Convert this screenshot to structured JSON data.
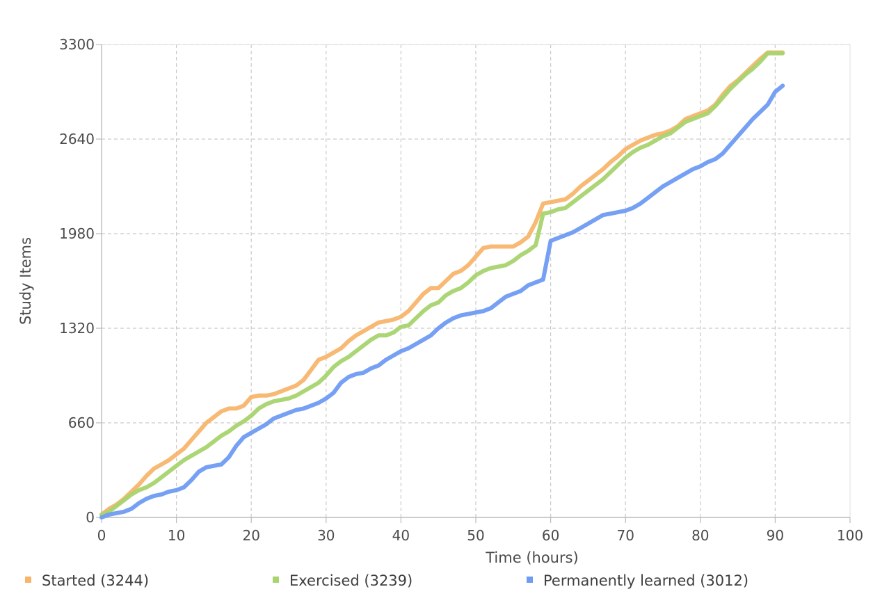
{
  "chart_data": {
    "type": "line",
    "title": "",
    "xlabel": "Time (hours)",
    "ylabel": "Study Items",
    "xlim": [
      0,
      100
    ],
    "ylim": [
      0,
      3300
    ],
    "xticks": [
      0,
      10,
      20,
      30,
      40,
      50,
      60,
      70,
      80,
      90,
      100
    ],
    "yticks": [
      0,
      660,
      1320,
      1980,
      2640,
      3300
    ],
    "grid": true,
    "legend_position": "bottom",
    "series": [
      {
        "name": "Started (3244)",
        "color": "#f7b56b",
        "points": [
          [
            0,
            20
          ],
          [
            1,
            60
          ],
          [
            2,
            90
          ],
          [
            3,
            130
          ],
          [
            4,
            180
          ],
          [
            5,
            230
          ],
          [
            6,
            290
          ],
          [
            7,
            340
          ],
          [
            8,
            370
          ],
          [
            9,
            400
          ],
          [
            10,
            440
          ],
          [
            11,
            480
          ],
          [
            12,
            540
          ],
          [
            13,
            600
          ],
          [
            14,
            660
          ],
          [
            15,
            700
          ],
          [
            16,
            740
          ],
          [
            17,
            760
          ],
          [
            18,
            760
          ],
          [
            19,
            780
          ],
          [
            20,
            840
          ],
          [
            21,
            850
          ],
          [
            22,
            850
          ],
          [
            23,
            860
          ],
          [
            24,
            880
          ],
          [
            25,
            900
          ],
          [
            26,
            920
          ],
          [
            27,
            960
          ],
          [
            28,
            1030
          ],
          [
            29,
            1100
          ],
          [
            30,
            1120
          ],
          [
            31,
            1150
          ],
          [
            32,
            1180
          ],
          [
            33,
            1230
          ],
          [
            34,
            1270
          ],
          [
            35,
            1300
          ],
          [
            36,
            1330
          ],
          [
            37,
            1360
          ],
          [
            38,
            1370
          ],
          [
            39,
            1380
          ],
          [
            40,
            1400
          ],
          [
            41,
            1440
          ],
          [
            42,
            1500
          ],
          [
            43,
            1560
          ],
          [
            44,
            1600
          ],
          [
            45,
            1600
          ],
          [
            46,
            1650
          ],
          [
            47,
            1700
          ],
          [
            48,
            1720
          ],
          [
            49,
            1760
          ],
          [
            50,
            1820
          ],
          [
            51,
            1880
          ],
          [
            52,
            1890
          ],
          [
            53,
            1890
          ],
          [
            54,
            1890
          ],
          [
            55,
            1890
          ],
          [
            56,
            1920
          ],
          [
            57,
            1960
          ],
          [
            58,
            2060
          ],
          [
            59,
            2190
          ],
          [
            60,
            2200
          ],
          [
            61,
            2210
          ],
          [
            62,
            2220
          ],
          [
            63,
            2260
          ],
          [
            64,
            2310
          ],
          [
            65,
            2350
          ],
          [
            66,
            2390
          ],
          [
            67,
            2430
          ],
          [
            68,
            2480
          ],
          [
            69,
            2520
          ],
          [
            70,
            2570
          ],
          [
            71,
            2600
          ],
          [
            72,
            2630
          ],
          [
            73,
            2650
          ],
          [
            74,
            2670
          ],
          [
            75,
            2680
          ],
          [
            76,
            2700
          ],
          [
            77,
            2730
          ],
          [
            78,
            2780
          ],
          [
            79,
            2800
          ],
          [
            80,
            2820
          ],
          [
            81,
            2840
          ],
          [
            82,
            2880
          ],
          [
            83,
            2950
          ],
          [
            84,
            3010
          ],
          [
            85,
            3050
          ],
          [
            86,
            3100
          ],
          [
            87,
            3150
          ],
          [
            88,
            3200
          ],
          [
            89,
            3244
          ],
          [
            90,
            3244
          ],
          [
            91,
            3244
          ]
        ]
      },
      {
        "name": "Exercised (3239)",
        "color": "#a8d46f",
        "points": [
          [
            0,
            20
          ],
          [
            1,
            40
          ],
          [
            2,
            80
          ],
          [
            3,
            120
          ],
          [
            4,
            160
          ],
          [
            5,
            190
          ],
          [
            6,
            210
          ],
          [
            7,
            240
          ],
          [
            8,
            280
          ],
          [
            9,
            320
          ],
          [
            10,
            360
          ],
          [
            11,
            400
          ],
          [
            12,
            430
          ],
          [
            13,
            460
          ],
          [
            14,
            490
          ],
          [
            15,
            530
          ],
          [
            16,
            570
          ],
          [
            17,
            600
          ],
          [
            18,
            640
          ],
          [
            19,
            670
          ],
          [
            20,
            710
          ],
          [
            21,
            760
          ],
          [
            22,
            790
          ],
          [
            23,
            810
          ],
          [
            24,
            820
          ],
          [
            25,
            830
          ],
          [
            26,
            850
          ],
          [
            27,
            880
          ],
          [
            28,
            910
          ],
          [
            29,
            940
          ],
          [
            30,
            990
          ],
          [
            31,
            1050
          ],
          [
            32,
            1090
          ],
          [
            33,
            1120
          ],
          [
            34,
            1160
          ],
          [
            35,
            1200
          ],
          [
            36,
            1240
          ],
          [
            37,
            1270
          ],
          [
            38,
            1270
          ],
          [
            39,
            1290
          ],
          [
            40,
            1330
          ],
          [
            41,
            1340
          ],
          [
            42,
            1390
          ],
          [
            43,
            1440
          ],
          [
            44,
            1480
          ],
          [
            45,
            1500
          ],
          [
            46,
            1550
          ],
          [
            47,
            1580
          ],
          [
            48,
            1600
          ],
          [
            49,
            1640
          ],
          [
            50,
            1690
          ],
          [
            51,
            1720
          ],
          [
            52,
            1740
          ],
          [
            53,
            1750
          ],
          [
            54,
            1760
          ],
          [
            55,
            1790
          ],
          [
            56,
            1830
          ],
          [
            57,
            1860
          ],
          [
            58,
            1900
          ],
          [
            59,
            2120
          ],
          [
            60,
            2130
          ],
          [
            61,
            2150
          ],
          [
            62,
            2160
          ],
          [
            63,
            2200
          ],
          [
            64,
            2240
          ],
          [
            65,
            2280
          ],
          [
            66,
            2320
          ],
          [
            67,
            2360
          ],
          [
            68,
            2410
          ],
          [
            69,
            2460
          ],
          [
            70,
            2510
          ],
          [
            71,
            2550
          ],
          [
            72,
            2580
          ],
          [
            73,
            2600
          ],
          [
            74,
            2630
          ],
          [
            75,
            2660
          ],
          [
            76,
            2680
          ],
          [
            77,
            2720
          ],
          [
            78,
            2760
          ],
          [
            79,
            2780
          ],
          [
            80,
            2800
          ],
          [
            81,
            2820
          ],
          [
            82,
            2870
          ],
          [
            83,
            2930
          ],
          [
            84,
            2990
          ],
          [
            85,
            3040
          ],
          [
            86,
            3090
          ],
          [
            87,
            3130
          ],
          [
            88,
            3180
          ],
          [
            89,
            3239
          ],
          [
            90,
            3239
          ],
          [
            91,
            3239
          ]
        ]
      },
      {
        "name": "Permanently learned (3012)",
        "color": "#6f9bf3",
        "points": [
          [
            0,
            0
          ],
          [
            1,
            20
          ],
          [
            2,
            30
          ],
          [
            3,
            40
          ],
          [
            4,
            60
          ],
          [
            5,
            100
          ],
          [
            6,
            130
          ],
          [
            7,
            150
          ],
          [
            8,
            160
          ],
          [
            9,
            180
          ],
          [
            10,
            190
          ],
          [
            11,
            210
          ],
          [
            12,
            260
          ],
          [
            13,
            320
          ],
          [
            14,
            350
          ],
          [
            15,
            360
          ],
          [
            16,
            370
          ],
          [
            17,
            420
          ],
          [
            18,
            500
          ],
          [
            19,
            560
          ],
          [
            20,
            590
          ],
          [
            21,
            620
          ],
          [
            22,
            650
          ],
          [
            23,
            690
          ],
          [
            24,
            710
          ],
          [
            25,
            730
          ],
          [
            26,
            750
          ],
          [
            27,
            760
          ],
          [
            28,
            780
          ],
          [
            29,
            800
          ],
          [
            30,
            830
          ],
          [
            31,
            870
          ],
          [
            32,
            940
          ],
          [
            33,
            980
          ],
          [
            34,
            1000
          ],
          [
            35,
            1010
          ],
          [
            36,
            1040
          ],
          [
            37,
            1060
          ],
          [
            38,
            1100
          ],
          [
            39,
            1130
          ],
          [
            40,
            1160
          ],
          [
            41,
            1180
          ],
          [
            42,
            1210
          ],
          [
            43,
            1240
          ],
          [
            44,
            1270
          ],
          [
            45,
            1320
          ],
          [
            46,
            1360
          ],
          [
            47,
            1390
          ],
          [
            48,
            1410
          ],
          [
            49,
            1420
          ],
          [
            50,
            1430
          ],
          [
            51,
            1440
          ],
          [
            52,
            1460
          ],
          [
            53,
            1500
          ],
          [
            54,
            1540
          ],
          [
            55,
            1560
          ],
          [
            56,
            1580
          ],
          [
            57,
            1620
          ],
          [
            58,
            1640
          ],
          [
            59,
            1660
          ],
          [
            60,
            1930
          ],
          [
            61,
            1950
          ],
          [
            62,
            1970
          ],
          [
            63,
            1990
          ],
          [
            64,
            2020
          ],
          [
            65,
            2050
          ],
          [
            66,
            2080
          ],
          [
            67,
            2110
          ],
          [
            68,
            2120
          ],
          [
            69,
            2130
          ],
          [
            70,
            2140
          ],
          [
            71,
            2160
          ],
          [
            72,
            2190
          ],
          [
            73,
            2230
          ],
          [
            74,
            2270
          ],
          [
            75,
            2310
          ],
          [
            76,
            2340
          ],
          [
            77,
            2370
          ],
          [
            78,
            2400
          ],
          [
            79,
            2430
          ],
          [
            80,
            2450
          ],
          [
            81,
            2480
          ],
          [
            82,
            2500
          ],
          [
            83,
            2540
          ],
          [
            84,
            2600
          ],
          [
            85,
            2660
          ],
          [
            86,
            2720
          ],
          [
            87,
            2780
          ],
          [
            88,
            2830
          ],
          [
            89,
            2880
          ],
          [
            90,
            2970
          ],
          [
            91,
            3012
          ]
        ]
      }
    ]
  }
}
